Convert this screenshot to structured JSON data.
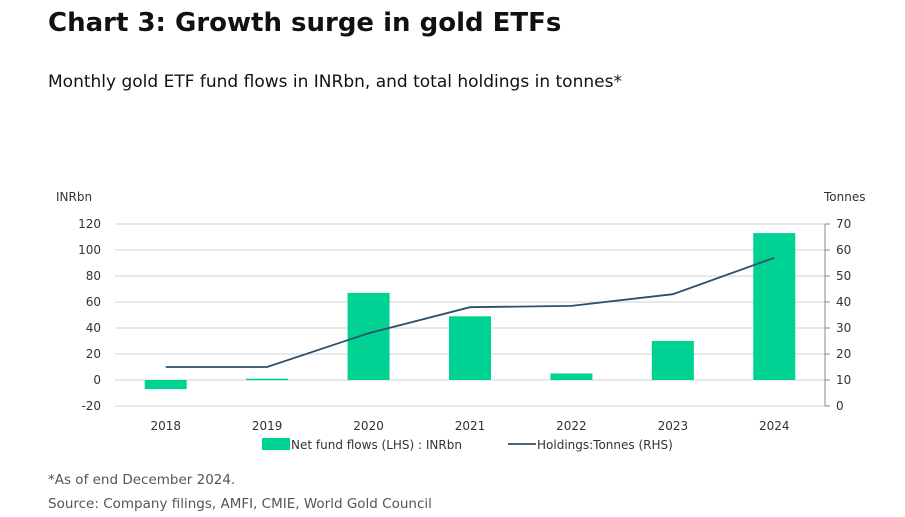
{
  "header": {
    "title": "Chart 3: Growth surge in gold ETFs",
    "subtitle": "Monthly gold ETF fund flows in INRbn, and total holdings in tonnes*"
  },
  "footer": {
    "note": "*As of end December 2024.",
    "source": "Source: Company filings, AMFI, CMIE, World Gold Council"
  },
  "colors": {
    "bar": "#00d293",
    "line": "#2d4f6e",
    "grid": "#d0d0d0"
  },
  "chart_data": {
    "type": "bar",
    "categories": [
      "2018",
      "2019",
      "2020",
      "2021",
      "2022",
      "2023",
      "2024"
    ],
    "series": [
      {
        "name": "Net fund flows (LHS) : INRbn",
        "type": "bar",
        "axis": "left",
        "values": [
          -7,
          1,
          67,
          49,
          5,
          30,
          113
        ]
      },
      {
        "name": "Holdings:Tonnes  (RHS)",
        "type": "line",
        "axis": "right",
        "values": [
          15,
          15,
          28,
          38,
          38.5,
          43,
          57
        ]
      }
    ],
    "y_left": {
      "label": "INRbn",
      "ylim": [
        -20,
        120
      ],
      "ticks": [
        "-20",
        "0",
        "20",
        "40",
        "60",
        "80",
        "100",
        "120"
      ]
    },
    "y_right": {
      "label": "Tonnes",
      "ylim": [
        0,
        70
      ],
      "ticks": [
        "0",
        "10",
        "20",
        "30",
        "40",
        "50",
        "60",
        "70"
      ]
    },
    "grid": true,
    "legend_position": "bottom"
  }
}
